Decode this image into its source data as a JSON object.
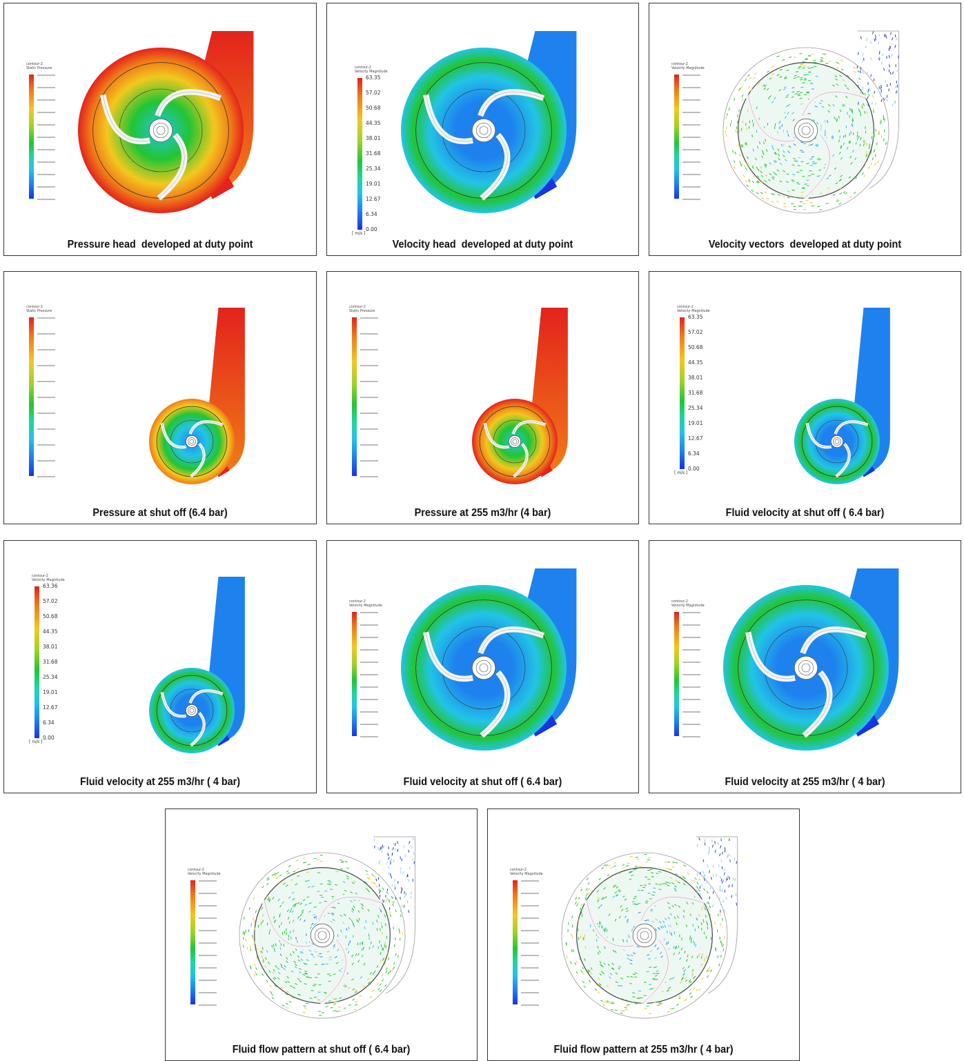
{
  "panels": [
    {
      "caption": "Pressure head  developed at duty point",
      "legend_ticks": [],
      "unit": ""
    },
    {
      "caption": "Velocity head  developed at duty point",
      "legend_ticks": [
        "63.35",
        "57.02",
        "50.68",
        "44.35",
        "38.01",
        "31.68",
        "25.34",
        "19.01",
        "12.67",
        "6.34",
        "0.00"
      ],
      "unit": "[ m/s ]"
    },
    {
      "caption": "Velocity vectors  developed at duty point",
      "legend_ticks": [],
      "unit": ""
    },
    {
      "caption": "Pressure at shut off (6.4 bar)",
      "legend_ticks": [],
      "unit": ""
    },
    {
      "caption": "Pressure at 255 m3/hr (4 bar)",
      "legend_ticks": [],
      "unit": ""
    },
    {
      "caption": "Fluid velocity at shut off ( 6.4 bar)",
      "legend_ticks": [
        "63.35",
        "57.02",
        "50.68",
        "44.35",
        "38.01",
        "31.68",
        "25.34",
        "19.01",
        "12.67",
        "6.34",
        "0.00"
      ],
      "unit": "[ m/s ]"
    },
    {
      "caption": "Fluid velocity at 255 m3/hr ( 4 bar)",
      "legend_ticks": [
        "63.36",
        "57.02",
        "50.68",
        "44.35",
        "38.01",
        "31.68",
        "25.34",
        "19.01",
        "12.67",
        "6.34",
        "0.00"
      ],
      "unit": "[ m/s ]"
    },
    {
      "caption": "Fluid velocity at shut off ( 6.4 bar)",
      "legend_ticks": [],
      "unit": ""
    },
    {
      "caption": "Fluid velocity at 255 m3/hr ( 4 bar)",
      "legend_ticks": [],
      "unit": ""
    },
    {
      "caption": "Fluid flow pattern at shut off ( 6.4 bar)",
      "legend_ticks": [],
      "unit": ""
    },
    {
      "caption": "Fluid flow pattern at 255 m3/hr ( 4 bar)",
      "legend_ticks": [],
      "unit": ""
    }
  ],
  "legend_titles": {
    "velocity": "contour-2\nVelocity Magnitude",
    "pressure": "contour-2\nStatic Pressure"
  },
  "colors": {
    "red": "#e3231c",
    "orange": "#f07a18",
    "yellow": "#f2c81e",
    "green": "#22c533",
    "cyan": "#22c4e6",
    "blue": "#1e82ee",
    "darkblue": "#1733e6"
  }
}
